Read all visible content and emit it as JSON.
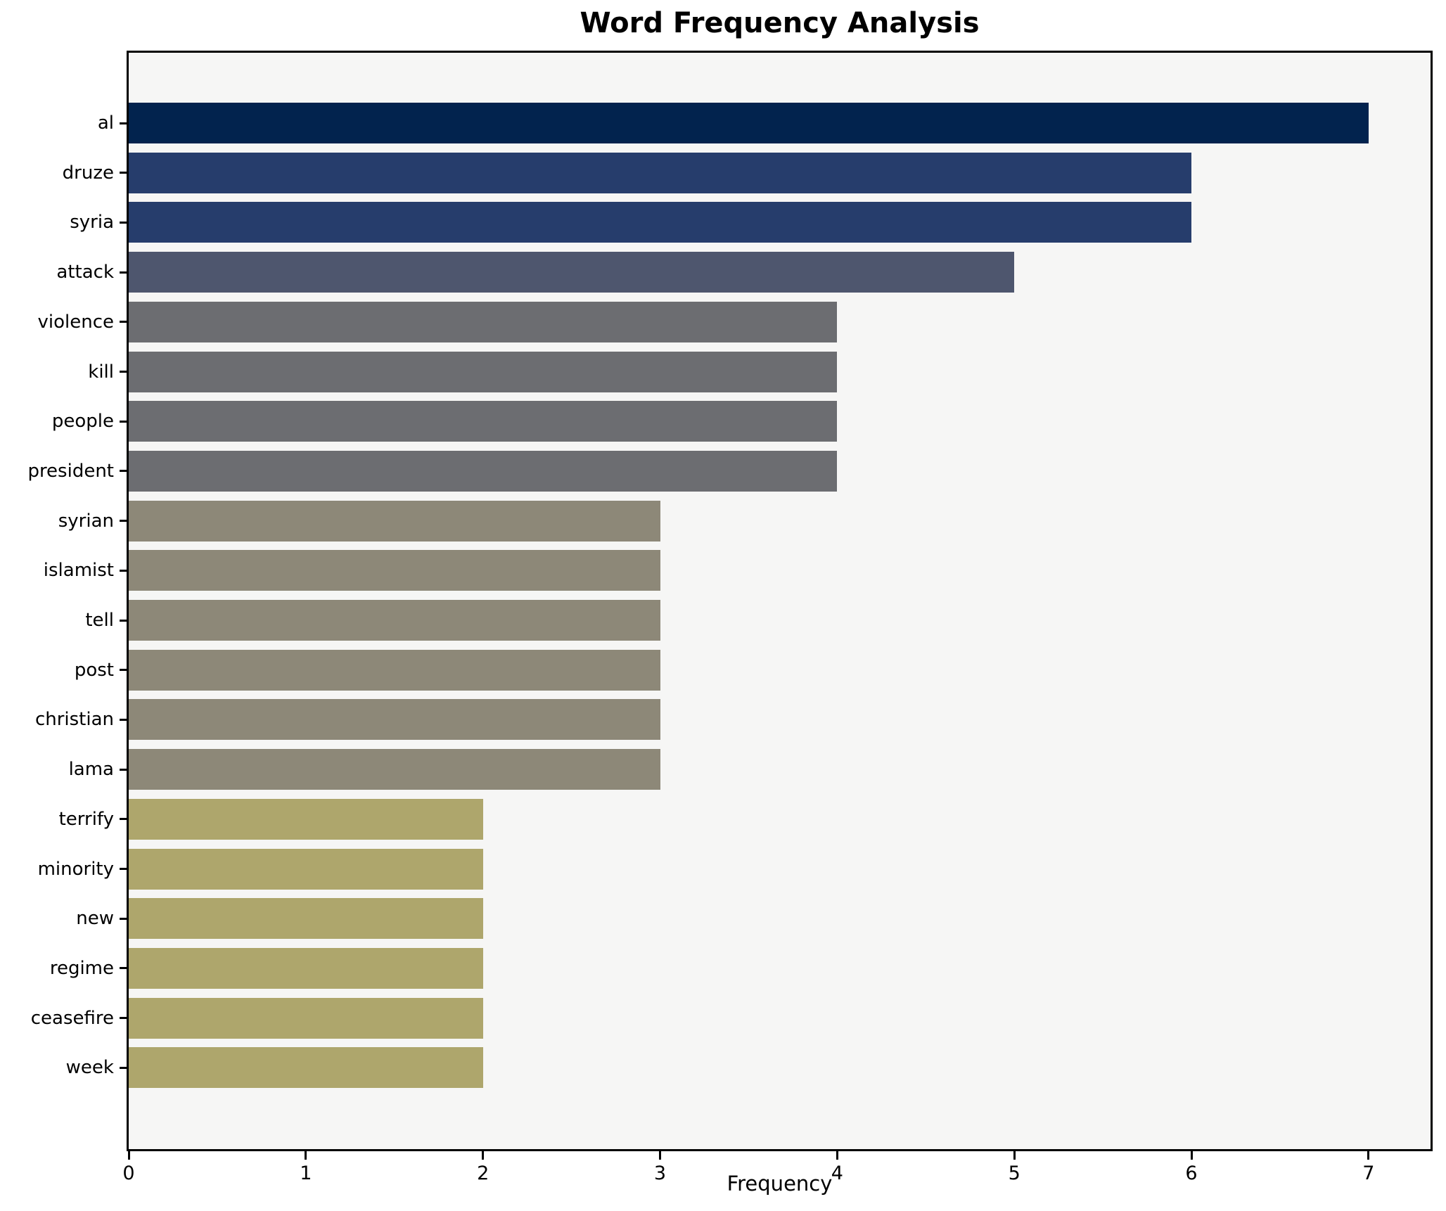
{
  "title": "Word Frequency Analysis",
  "xlabel": "Frequency",
  "chart_data": {
    "type": "bar",
    "orientation": "horizontal",
    "title": "Word Frequency Analysis",
    "xlabel": "Frequency",
    "ylabel": "",
    "categories": [
      "al",
      "druze",
      "syria",
      "attack",
      "violence",
      "kill",
      "people",
      "president",
      "syrian",
      "islamist",
      "tell",
      "post",
      "christian",
      "lama",
      "terrify",
      "minority",
      "new",
      "regime",
      "ceasefire",
      "week"
    ],
    "values": [
      7,
      6,
      6,
      5,
      4,
      4,
      4,
      4,
      3,
      3,
      3,
      3,
      3,
      3,
      2,
      2,
      2,
      2,
      2,
      2
    ],
    "xlim": [
      0,
      7.35
    ],
    "xticks": [
      0,
      1,
      2,
      3,
      4,
      5,
      6,
      7
    ],
    "grid": false,
    "legend": null,
    "colors_by_value": {
      "7": "#02234e",
      "6": "#263d6c",
      "5": "#4e566e",
      "4": "#6c6d71",
      "3": "#8d8878",
      "2": "#aea66c"
    },
    "plot_background": "#f6f6f5",
    "figure_background": "#ffffff",
    "spine_color": "#000000",
    "bar_label_color": "#000000"
  }
}
